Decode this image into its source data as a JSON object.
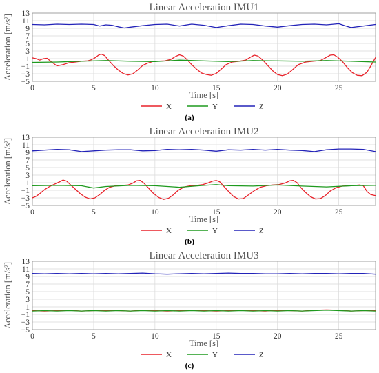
{
  "chart_data": [
    {
      "type": "line",
      "title": "Linear Acceleration IMU1",
      "xlabel": "Time [s]",
      "ylabel": "Acceleration [m/s²]",
      "caption": "(a)",
      "xlim": [
        0,
        28
      ],
      "ylim": [
        -5,
        13
      ],
      "xticks": [
        0,
        5,
        10,
        15,
        20,
        25
      ],
      "yticks": [
        -5,
        -3,
        -1,
        1,
        3,
        5,
        7,
        9,
        11,
        13
      ],
      "grid": true,
      "legend": "bottom-center",
      "series": [
        {
          "name": "X",
          "color": "#e8222a",
          "x": [
            0,
            0.3,
            0.6,
            0.9,
            1.2,
            1.6,
            2.0,
            2.5,
            3.0,
            3.5,
            4.0,
            4.5,
            4.8,
            5.1,
            5.4,
            5.6,
            5.9,
            6.2,
            6.6,
            7.0,
            7.4,
            7.8,
            8.2,
            8.6,
            9.0,
            9.4,
            9.8,
            10.2,
            10.8,
            11.3,
            11.7,
            12.0,
            12.3,
            12.6,
            13.0,
            13.4,
            13.8,
            14.2,
            14.6,
            15.0,
            15.4,
            15.8,
            16.3,
            16.9,
            17.4,
            17.8,
            18.1,
            18.4,
            18.8,
            19.2,
            19.6,
            20.0,
            20.4,
            20.8,
            21.2,
            21.7,
            22.3,
            22.9,
            23.5,
            23.9,
            24.3,
            24.6,
            24.9,
            25.3,
            25.7,
            26.1,
            26.5,
            26.9,
            27.3,
            27.6,
            28.0
          ],
          "y": [
            1.2,
            1.0,
            0.6,
            1.0,
            1.1,
            0.0,
            -0.9,
            -0.6,
            -0.1,
            0.1,
            0.3,
            0.4,
            0.7,
            1.2,
            1.9,
            2.2,
            1.8,
            0.6,
            -0.8,
            -2.0,
            -2.9,
            -3.3,
            -3.0,
            -2.0,
            -0.8,
            -0.2,
            0.2,
            0.3,
            0.4,
            0.8,
            1.6,
            2.0,
            1.7,
            0.8,
            -0.6,
            -1.8,
            -2.8,
            -3.2,
            -3.4,
            -2.9,
            -1.8,
            -0.6,
            0.1,
            0.3,
            0.6,
            1.4,
            1.9,
            1.7,
            0.6,
            -0.8,
            -2.2,
            -3.2,
            -3.5,
            -3.1,
            -2.0,
            -0.6,
            0.1,
            0.3,
            0.5,
            1.2,
            1.9,
            2.0,
            1.4,
            0.2,
            -1.4,
            -2.7,
            -3.4,
            -3.5,
            -2.6,
            -1.0,
            1.3
          ]
        },
        {
          "name": "Y",
          "color": "#1f9a1f",
          "x": [
            0,
            2,
            4,
            6,
            8,
            10,
            12,
            14,
            16,
            18,
            20,
            22,
            24,
            26,
            28
          ],
          "y": [
            0.0,
            0.1,
            0.3,
            0.5,
            0.3,
            0.2,
            0.6,
            0.4,
            0.2,
            0.5,
            0.4,
            0.3,
            0.5,
            0.3,
            0.1
          ]
        },
        {
          "name": "Z",
          "color": "#2323b8",
          "x": [
            0,
            1,
            2,
            3,
            4,
            5,
            5.5,
            6,
            6.5,
            7,
            7.5,
            8,
            9,
            10,
            11,
            12,
            13,
            14,
            15,
            16,
            17,
            18,
            19,
            20,
            21,
            22,
            23,
            24,
            25,
            25.5,
            26,
            27,
            28
          ],
          "y": [
            10.0,
            9.9,
            10.1,
            10.0,
            10.1,
            10.0,
            9.6,
            9.9,
            9.8,
            9.4,
            9.1,
            9.3,
            9.7,
            10.0,
            10.1,
            9.6,
            10.1,
            9.8,
            9.2,
            9.7,
            10.1,
            10.0,
            9.6,
            9.3,
            9.7,
            10.0,
            10.1,
            9.9,
            10.2,
            9.7,
            9.2,
            9.6,
            10.0
          ]
        }
      ]
    },
    {
      "type": "line",
      "title": "Linear Acceleration IMU2",
      "xlabel": "Time [s]",
      "ylabel": "Acceleration [m/s²]",
      "caption": "(b)",
      "xlim": [
        0,
        28
      ],
      "ylim": [
        -5,
        13
      ],
      "xticks": [
        0,
        5,
        10,
        15,
        20,
        25
      ],
      "yticks": [
        -5,
        -3,
        -1,
        1,
        3,
        5,
        7,
        9,
        11,
        13
      ],
      "grid": true,
      "legend": "bottom-center",
      "series": [
        {
          "name": "X",
          "color": "#e8222a",
          "x": [
            0,
            0.3,
            0.6,
            1.0,
            1.4,
            1.8,
            2.2,
            2.5,
            2.8,
            3.1,
            3.5,
            3.9,
            4.3,
            4.7,
            5.1,
            5.5,
            5.9,
            6.3,
            6.8,
            7.3,
            7.8,
            8.2,
            8.5,
            8.8,
            9.1,
            9.5,
            9.9,
            10.3,
            10.7,
            11.1,
            11.5,
            11.9,
            12.4,
            12.9,
            13.4,
            13.9,
            14.3,
            14.7,
            15.0,
            15.3,
            15.6,
            16.0,
            16.4,
            16.8,
            17.2,
            17.6,
            18.1,
            18.6,
            19.1,
            19.6,
            20.1,
            20.6,
            21.0,
            21.3,
            21.6,
            21.9,
            22.3,
            22.7,
            23.1,
            23.5,
            23.9,
            24.3,
            24.8,
            25.3,
            25.8,
            26.3,
            26.7,
            27.0,
            27.3,
            27.6,
            28.0
          ],
          "y": [
            -3.0,
            -2.6,
            -1.9,
            -0.8,
            0.0,
            0.6,
            1.2,
            1.7,
            1.4,
            0.5,
            -0.7,
            -1.9,
            -2.8,
            -3.3,
            -3.0,
            -2.1,
            -1.0,
            -0.2,
            0.2,
            0.3,
            0.4,
            0.9,
            1.5,
            1.6,
            0.9,
            -0.5,
            -1.9,
            -2.9,
            -3.4,
            -3.1,
            -2.2,
            -1.0,
            -0.1,
            0.2,
            0.3,
            0.5,
            0.9,
            1.4,
            1.6,
            1.2,
            0.1,
            -1.3,
            -2.6,
            -3.3,
            -3.2,
            -2.3,
            -1.1,
            -0.2,
            0.2,
            0.4,
            0.5,
            0.9,
            1.5,
            1.6,
            1.0,
            -0.3,
            -1.6,
            -2.7,
            -3.3,
            -3.2,
            -2.4,
            -1.2,
            -0.3,
            0.1,
            0.2,
            0.3,
            0.4,
            0.2,
            -1.3,
            -2.1,
            -2.4
          ]
        },
        {
          "name": "Y",
          "color": "#1f9a1f",
          "x": [
            0,
            2,
            4,
            5,
            6,
            8,
            10,
            12,
            14,
            15,
            16,
            18,
            20,
            22,
            24,
            26,
            28
          ],
          "y": [
            0.2,
            0.3,
            0.2,
            -0.4,
            0.0,
            0.3,
            0.2,
            -0.2,
            0.3,
            0.5,
            0.2,
            0.1,
            0.4,
            0.1,
            -0.1,
            0.2,
            0.3
          ]
        },
        {
          "name": "Z",
          "color": "#2323b8",
          "x": [
            0,
            1,
            2,
            3,
            4,
            5,
            6,
            7,
            8,
            9,
            10,
            11,
            12,
            13,
            14,
            15,
            16,
            17,
            18,
            19,
            20,
            21,
            22,
            23,
            24,
            25,
            26,
            27,
            28
          ],
          "y": [
            9.4,
            9.6,
            9.8,
            9.7,
            9.2,
            9.4,
            9.6,
            9.7,
            9.7,
            9.4,
            9.5,
            9.8,
            9.7,
            9.8,
            9.6,
            9.3,
            9.7,
            9.6,
            9.8,
            9.6,
            9.8,
            9.6,
            9.5,
            9.2,
            9.7,
            9.9,
            9.9,
            9.8,
            9.2
          ]
        }
      ]
    },
    {
      "type": "line",
      "title": "Linear Acceleration IMU3",
      "xlabel": "Time [s]",
      "ylabel": "Acceleration [m/s²]",
      "caption": "(c)",
      "xlim": [
        0,
        28
      ],
      "ylim": [
        -5,
        13
      ],
      "xticks": [
        0,
        5,
        10,
        15,
        20,
        25
      ],
      "yticks": [
        -5,
        -3,
        -1,
        1,
        3,
        5,
        7,
        9,
        11,
        13
      ],
      "grid": true,
      "legend": "bottom-center",
      "series": [
        {
          "name": "X",
          "color": "#e8222a",
          "x": [
            0,
            1,
            2,
            3,
            4,
            5,
            6,
            7,
            8,
            9,
            10,
            11,
            12,
            13,
            14,
            15,
            16,
            17,
            18,
            19,
            20,
            21,
            22,
            23,
            24,
            25,
            26,
            27,
            28
          ],
          "y": [
            0.0,
            -0.1,
            0.0,
            0.1,
            -0.1,
            0.0,
            0.1,
            0.0,
            -0.1,
            0.1,
            0.0,
            -0.1,
            0.0,
            0.1,
            0.0,
            -0.1,
            0.0,
            0.1,
            0.0,
            -0.1,
            0.1,
            0.0,
            -0.1,
            0.1,
            0.2,
            0.1,
            -0.1,
            0.0,
            0.0
          ]
        },
        {
          "name": "Y",
          "color": "#1f9a1f",
          "x": [
            0,
            1,
            2,
            3,
            4,
            5,
            6,
            7,
            8,
            9,
            10,
            11,
            12,
            13,
            14,
            15,
            16,
            17,
            18,
            19,
            20,
            21,
            22,
            23,
            24,
            25,
            26,
            27,
            28
          ],
          "y": [
            -0.1,
            0.0,
            -0.1,
            0.0,
            -0.1,
            0.0,
            -0.1,
            0.0,
            -0.1,
            0.0,
            -0.1,
            0.0,
            -0.1,
            0.0,
            -0.1,
            0.0,
            -0.1,
            0.0,
            -0.1,
            0.0,
            -0.1,
            0.0,
            -0.1,
            0.0,
            0.1,
            0.0,
            -0.1,
            0.0,
            -0.1
          ]
        },
        {
          "name": "Z",
          "color": "#2323b8",
          "x": [
            0,
            1,
            2,
            3,
            4,
            5,
            6,
            7,
            8,
            9,
            10,
            11,
            12,
            13,
            14,
            15,
            16,
            17,
            18,
            19,
            20,
            21,
            22,
            23,
            24,
            25,
            26,
            27,
            28
          ],
          "y": [
            9.8,
            9.7,
            9.8,
            9.7,
            9.8,
            9.7,
            9.8,
            9.7,
            9.8,
            9.9,
            9.7,
            9.6,
            9.7,
            9.8,
            9.7,
            9.8,
            9.9,
            9.8,
            9.8,
            9.7,
            9.7,
            9.8,
            9.7,
            9.8,
            9.8,
            9.7,
            9.8,
            9.8,
            9.6
          ]
        }
      ]
    }
  ]
}
